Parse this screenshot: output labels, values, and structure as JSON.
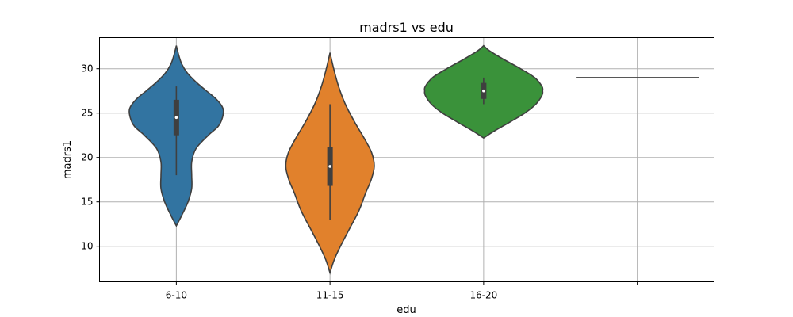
{
  "chart_data": {
    "type": "violin",
    "title": "madrs1 vs edu",
    "xlabel": "edu",
    "ylabel": "madrs1",
    "ylim": [
      6,
      33.5
    ],
    "yticks": [
      10,
      15,
      20,
      25,
      30
    ],
    "grid": true,
    "categories": [
      "6-10",
      "11-15",
      "16-20",
      ""
    ],
    "series": [
      {
        "category": "6-10",
        "color": "#3274a1",
        "extent": [
          12.3,
          32.6
        ],
        "whisker": [
          18,
          28
        ],
        "quartiles": [
          22.5,
          26.5
        ],
        "median": 24.5,
        "density": [
          [
            12.3,
            0.0
          ],
          [
            13.5,
            0.09
          ],
          [
            15,
            0.19
          ],
          [
            16.5,
            0.25
          ],
          [
            18,
            0.25
          ],
          [
            19.5,
            0.25
          ],
          [
            21,
            0.32
          ],
          [
            22.5,
            0.52
          ],
          [
            23.5,
            0.68
          ],
          [
            24.5,
            0.75
          ],
          [
            25.5,
            0.76
          ],
          [
            26.5,
            0.66
          ],
          [
            27.5,
            0.49
          ],
          [
            28.5,
            0.32
          ],
          [
            29.5,
            0.18
          ],
          [
            30.5,
            0.09
          ],
          [
            31.5,
            0.04
          ],
          [
            32.6,
            0.0
          ]
        ]
      },
      {
        "category": "11-15",
        "color": "#e1812c",
        "extent": [
          7,
          31.8
        ],
        "whisker": [
          13,
          26
        ],
        "quartiles": [
          16.8,
          21.2
        ],
        "median": 19,
        "density": [
          [
            7,
            0.0
          ],
          [
            8.5,
            0.07
          ],
          [
            10,
            0.17
          ],
          [
            12,
            0.32
          ],
          [
            14,
            0.47
          ],
          [
            16,
            0.58
          ],
          [
            17.5,
            0.67
          ],
          [
            19,
            0.72
          ],
          [
            20.5,
            0.68
          ],
          [
            22,
            0.57
          ],
          [
            24,
            0.4
          ],
          [
            26,
            0.25
          ],
          [
            28,
            0.14
          ],
          [
            30,
            0.06
          ],
          [
            31.8,
            0.0
          ]
        ]
      },
      {
        "category": "16-20",
        "color": "#3a923a",
        "extent": [
          22.2,
          32.6
        ],
        "whisker": [
          26,
          29
        ],
        "quartiles": [
          26.6,
          28.4
        ],
        "median": 27.5,
        "density": [
          [
            22.2,
            0.0
          ],
          [
            23,
            0.18
          ],
          [
            24,
            0.43
          ],
          [
            25,
            0.67
          ],
          [
            26,
            0.85
          ],
          [
            27,
            0.95
          ],
          [
            27.5,
            0.96
          ],
          [
            28,
            0.95
          ],
          [
            29,
            0.83
          ],
          [
            30,
            0.6
          ],
          [
            31,
            0.34
          ],
          [
            32,
            0.1
          ],
          [
            32.6,
            0.0
          ]
        ]
      },
      {
        "category": "",
        "color": "#3f3f3f",
        "single_value": 29
      }
    ]
  }
}
